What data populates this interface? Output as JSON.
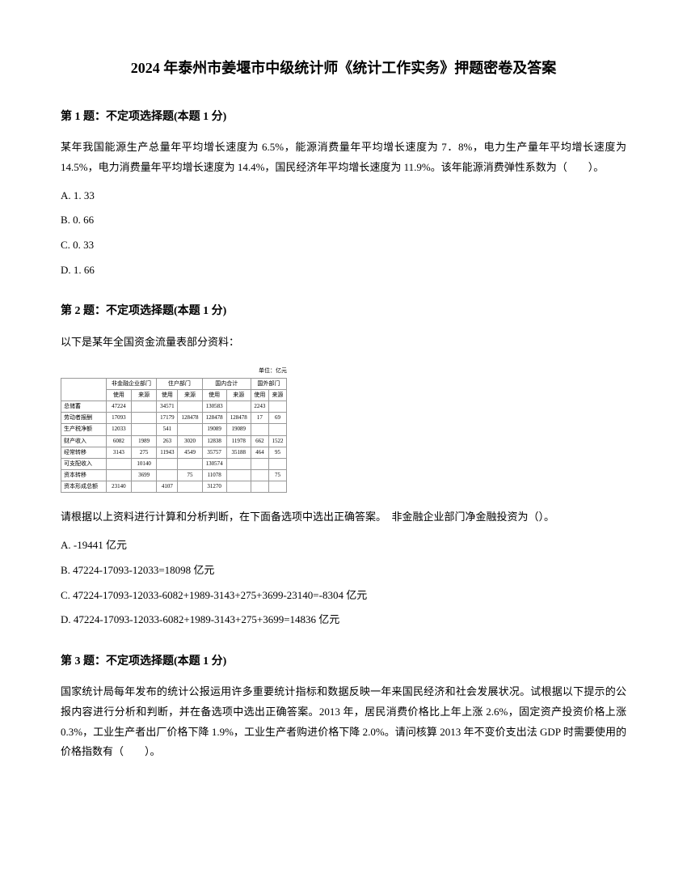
{
  "title": "2024 年泰州市姜堰市中级统计师《统计工作实务》押题密卷及答案",
  "q1": {
    "header": "第 1 题：不定项选择题(本题 1 分)",
    "text": "某年我国能源生产总量年平均增长速度为 6.5%，能源消费量年平均增长速度为 7．8%，电力生产量年平均增长速度为 14.5%，电力消费量年平均增长速度为 14.4%，国民经济年平均增长速度为 11.9%。该年能源消费弹性系数为（　　）。",
    "optA": "A. 1. 33",
    "optB": "B. 0. 66",
    "optC": "C. 0. 33",
    "optD": "D. 1. 66"
  },
  "q2": {
    "header": "第 2 题：不定项选择题(本题 1 分)",
    "text": "以下是某年全国资金流量表部分资料：",
    "unit": "单位：亿元",
    "tableHeaders": {
      "h1": "非金融企业部门",
      "h2": "住户部门",
      "h3": "国内合计",
      "h4": "国外部门",
      "sub1": "使用",
      "sub2": "来源",
      "sub3": "使用",
      "sub4": "来源",
      "sub5": "使用",
      "sub6": "来源",
      "sub7": "使用",
      "sub8": "来源"
    },
    "rows": [
      {
        "label": "总储蓄",
        "c1": "47224",
        "c2": "",
        "c3": "34571",
        "c4": "",
        "c5": "130583",
        "c6": "",
        "c7": "2243",
        "c8": ""
      },
      {
        "label": "劳动者报酬",
        "c1": "17093",
        "c2": "",
        "c3": "17179",
        "c4": "128478",
        "c5": "128478",
        "c6": "128478",
        "c7": "17",
        "c8": "69"
      },
      {
        "label": "生产税净额",
        "c1": "12033",
        "c2": "",
        "c3": "541",
        "c4": "",
        "c5": "19089",
        "c6": "19089",
        "c7": "",
        "c8": ""
      },
      {
        "label": "财产收入",
        "c1": "6082",
        "c2": "1989",
        "c3": "263",
        "c4": "3020",
        "c5": "12838",
        "c6": "11978",
        "c7": "662",
        "c8": "1522"
      },
      {
        "label": "经常转移",
        "c1": "3143",
        "c2": "275",
        "c3": "11943",
        "c4": "4549",
        "c5": "35757",
        "c6": "35188",
        "c7": "464",
        "c8": "95"
      },
      {
        "label": "可支配收入",
        "c1": "",
        "c2": "10140",
        "c3": "",
        "c4": "",
        "c5": "130574",
        "c6": "",
        "c7": "",
        "c8": ""
      },
      {
        "label": "资本转移",
        "c1": "",
        "c2": "3699",
        "c3": "",
        "c4": "75",
        "c5": "11078",
        "c6": "",
        "c7": "",
        "c8": "75"
      },
      {
        "label": "资本形成总额",
        "c1": "23140",
        "c2": "",
        "c3": "4107",
        "c4": "",
        "c5": "31270",
        "c6": "",
        "c7": "",
        "c8": ""
      }
    ],
    "postText": "请根据以上资料进行计算和分析判断，在下面备选项中选出正确答案。　非金融企业部门净金融投资为（）。",
    "optA": "A. -19441 亿元",
    "optB": "B. 47224-17093-12033=18098 亿元",
    "optC": "C. 47224-17093-12033-6082+1989-3143+275+3699-23140=-8304 亿元",
    "optD": "D. 47224-17093-12033-6082+1989-3143+275+3699=14836 亿元"
  },
  "q3": {
    "header": "第 3 题：不定项选择题(本题 1 分)",
    "text": "国家统计局每年发布的统计公报运用许多重要统计指标和数据反映一年来国民经济和社会发展状况。试根据以下提示的公报内容进行分析和判断，并在备选项中选出正确答案。2013 年，居民消费价格比上年上涨 2.6%，固定资产投资价格上涨 0.3%，工业生产者出厂价格下降 1.9%，工业生产者购进价格下降 2.0%。请问核算 2013 年不变价支出法 GDP 时需要使用的价格指数有（　　）。"
  }
}
